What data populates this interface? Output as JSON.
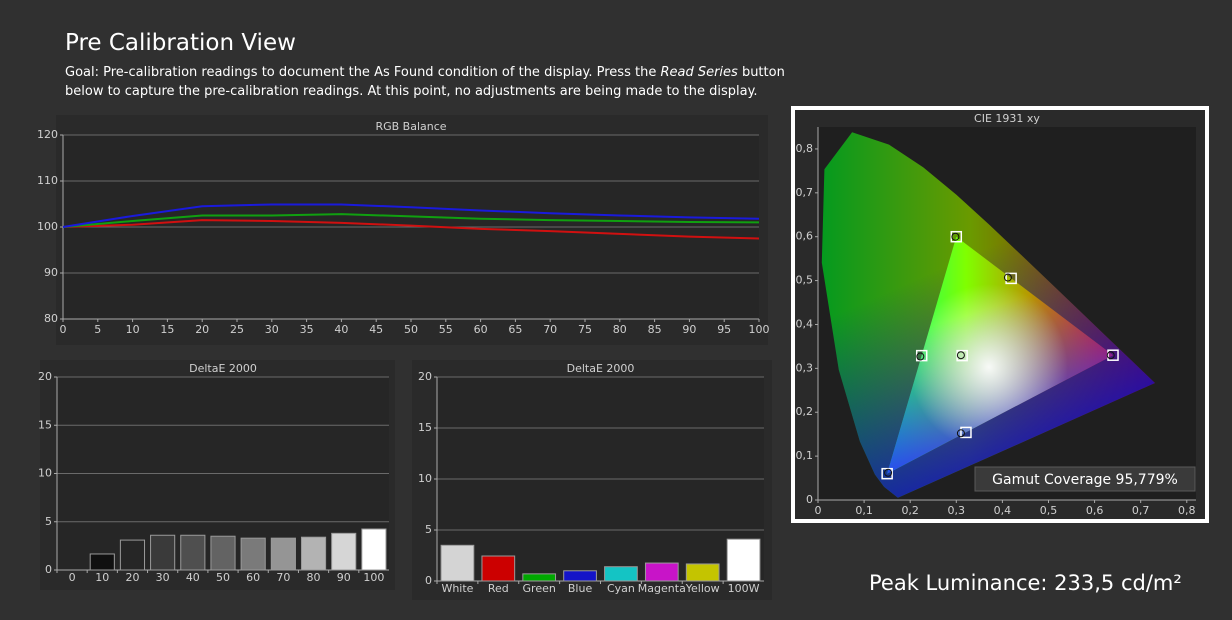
{
  "header": {
    "title": "Pre Calibration View",
    "goal_before": "Goal: Pre-calibration readings to document the As Found condition of the display. Press the ",
    "goal_emphasis": "Read Series",
    "goal_after": " button below to capture the pre-calibration readings. At this point, no adjustments are being made to the display."
  },
  "chart_data": [
    {
      "type": "line",
      "title": "RGB Balance",
      "x": [
        0,
        10,
        20,
        30,
        40,
        50,
        60,
        70,
        80,
        90,
        100
      ],
      "series": [
        {
          "color": "#d01010",
          "values": [
            100,
            100.5,
            101.5,
            101.3,
            100.9,
            100.3,
            99.6,
            99.1,
            98.5,
            97.9,
            97.5
          ]
        },
        {
          "color": "#10a010",
          "values": [
            100,
            101.3,
            102.5,
            102.5,
            102.8,
            102.3,
            101.8,
            101.5,
            101.3,
            101.1,
            101.0
          ]
        },
        {
          "color": "#1a1adc",
          "values": [
            100,
            102.4,
            104.5,
            104.9,
            104.9,
            104.3,
            103.6,
            103.0,
            102.5,
            102.1,
            101.8
          ]
        }
      ],
      "xlim": [
        0,
        100
      ],
      "xticks": [
        0,
        5,
        10,
        15,
        20,
        25,
        30,
        35,
        40,
        45,
        50,
        55,
        60,
        65,
        70,
        75,
        80,
        85,
        90,
        95,
        100
      ],
      "ylim": [
        80,
        120
      ],
      "yticks": [
        80,
        90,
        100,
        110,
        120
      ],
      "grid": true
    },
    {
      "type": "bar",
      "title": "DeltaE 2000",
      "categories": [
        "0",
        "10",
        "20",
        "30",
        "40",
        "50",
        "60",
        "70",
        "80",
        "90",
        "100"
      ],
      "values": [
        0,
        1.66,
        3.1,
        3.6,
        3.6,
        3.5,
        3.3,
        3.3,
        3.4,
        3.8,
        4.25
      ],
      "colors": [
        "#000000",
        "#101010",
        "#262626",
        "#3a3a3a",
        "#4f4f4f",
        "#636363",
        "#7a7a7a",
        "#959595",
        "#b3b3b3",
        "#d6d6d6",
        "#ffffff"
      ],
      "ylim": [
        0,
        20
      ],
      "yticks": [
        0,
        5,
        10,
        15,
        20
      ],
      "grid": true
    },
    {
      "type": "bar",
      "title": "DeltaE 2000",
      "categories": [
        "White",
        "Red",
        "Green",
        "Blue",
        "Cyan",
        "Magenta",
        "Yellow",
        "100W"
      ],
      "values": [
        3.5,
        2.45,
        0.7,
        1.0,
        1.4,
        1.76,
        1.67,
        4.1
      ],
      "colors": [
        "#d4d4d4",
        "#cc0000",
        "#00a800",
        "#1414c8",
        "#14c4c4",
        "#c814c8",
        "#c4c400",
        "#ffffff"
      ],
      "ylim": [
        0,
        20
      ],
      "yticks": [
        0,
        5,
        10,
        15,
        20
      ],
      "grid": true
    },
    {
      "type": "scatter",
      "title": "CIE 1931 xy",
      "annotation": "Gamut Coverage 95,779%",
      "series": [
        {
          "marker": "square",
          "x": [
            0.64,
            0.3,
            0.15,
            0.3127,
            0.225,
            0.321,
            0.419
          ],
          "y": [
            0.33,
            0.6,
            0.06,
            0.329,
            0.329,
            0.154,
            0.505
          ]
        },
        {
          "marker": "circle",
          "x": [
            0.635,
            0.298,
            0.152,
            0.31,
            0.222,
            0.31,
            0.412
          ],
          "y": [
            0.33,
            0.6,
            0.062,
            0.33,
            0.327,
            0.152,
            0.507
          ]
        }
      ],
      "xlim": [
        0,
        0.82
      ],
      "xticks": [
        0,
        {
          "value": 0.1,
          "label": "0,1"
        },
        {
          "value": 0.2,
          "label": "0,2"
        },
        {
          "value": 0.3,
          "label": "0,3"
        },
        {
          "value": 0.4,
          "label": "0,4"
        },
        {
          "value": 0.5,
          "label": "0,5"
        },
        {
          "value": 0.6,
          "label": "0,6"
        },
        {
          "value": 0.7,
          "label": "0,7"
        },
        {
          "value": 0.8,
          "label": "0,8"
        }
      ],
      "ylim": [
        0,
        0.85
      ],
      "yticks": [
        0,
        {
          "value": 0.1,
          "label": "0,1"
        },
        {
          "value": 0.2,
          "label": "0,2"
        },
        {
          "value": 0.3,
          "label": "0,3"
        },
        {
          "value": 0.4,
          "label": "0,4"
        },
        {
          "value": 0.5,
          "label": "0,5"
        },
        {
          "value": 0.6,
          "label": "0,6"
        },
        {
          "value": 0.7,
          "label": "0,7"
        },
        {
          "value": 0.8,
          "label": "0,8"
        }
      ],
      "grid": false
    }
  ],
  "peak_luminance": "Peak Luminance: 233,5 cd/m²"
}
